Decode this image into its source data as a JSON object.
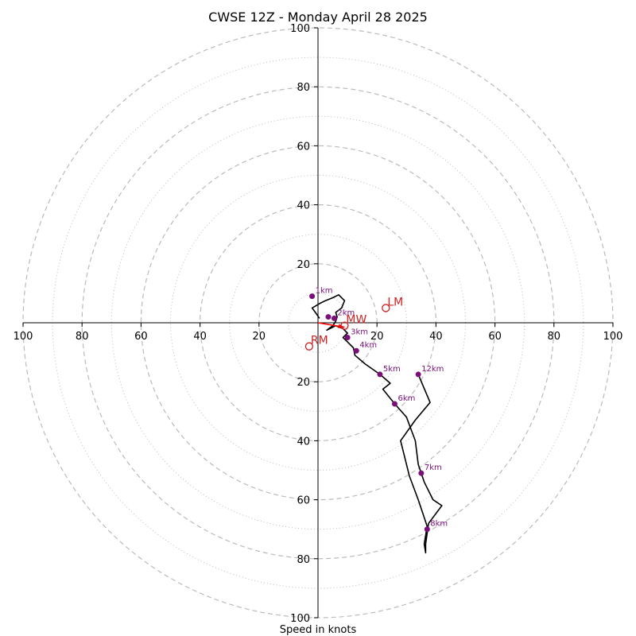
{
  "chart_data": {
    "type": "hodograph",
    "title": "CWSE 12Z - Monday April 28 2025",
    "xlabel": "Speed in knots",
    "xlim": [
      -100,
      100
    ],
    "ylim": [
      -100,
      100
    ],
    "rings_major": [
      20,
      40,
      60,
      80,
      100
    ],
    "rings_minor": [
      10,
      30,
      50,
      70,
      90
    ],
    "x_ticks": [
      "100",
      "80",
      "60",
      "40",
      "20",
      "0",
      "20",
      "40",
      "60",
      "80",
      "100"
    ],
    "y_ticks": [
      "100",
      "80",
      "60",
      "40",
      "20",
      "0",
      "20",
      "40",
      "60",
      "80",
      "100"
    ],
    "grid": true,
    "colors": {
      "trace": "#000000",
      "height_marker": "#7a0f7a",
      "motion_marker": "#cc2222",
      "shear_vector": "#ff0000",
      "grid": "#bbbbbb"
    },
    "trace": [
      [
        0.5,
        1.5
      ],
      [
        -0.5,
        3.0
      ],
      [
        -2.0,
        5.0
      ],
      [
        0.5,
        6.5
      ],
      [
        2.5,
        7.5
      ],
      [
        5.0,
        8.5
      ],
      [
        7.0,
        9.5
      ],
      [
        9.0,
        7.5
      ],
      [
        8.0,
        5.0
      ],
      [
        6.0,
        3.5
      ],
      [
        6.5,
        2.0
      ],
      [
        6.0,
        0.5
      ],
      [
        5.0,
        -1.0
      ],
      [
        3.0,
        -2.5
      ],
      [
        6.0,
        -1.0
      ],
      [
        8.5,
        -2.0
      ],
      [
        10.0,
        -3.5
      ],
      [
        8.5,
        -5.0
      ],
      [
        10.0,
        -6.5
      ],
      [
        12.0,
        -8.5
      ],
      [
        12.5,
        -11.0
      ],
      [
        16.0,
        -14.0
      ],
      [
        21.0,
        -17.5
      ],
      [
        24.5,
        -20.5
      ],
      [
        22.0,
        -22.5
      ],
      [
        26.0,
        -27.5
      ],
      [
        30.0,
        -32.0
      ],
      [
        33.0,
        -40.0
      ],
      [
        34.0,
        -48.0
      ],
      [
        36.0,
        -54.0
      ],
      [
        39.0,
        -60.0
      ],
      [
        42.0,
        -62.0
      ],
      [
        37.5,
        -68.0
      ],
      [
        36.5,
        -75.0
      ],
      [
        36.5,
        -78.0
      ],
      [
        36.0,
        -75.0
      ],
      [
        37.0,
        -69.0
      ],
      [
        34.0,
        -60.0
      ],
      [
        31.0,
        -52.0
      ],
      [
        28.0,
        -40.0
      ],
      [
        33.0,
        -33.0
      ],
      [
        38.0,
        -27.0
      ],
      [
        34.0,
        -17.5
      ]
    ],
    "height_points": [
      {
        "label": "1km",
        "x": -2.0,
        "y": 9.0
      },
      {
        "label": "2km",
        "x": 5.5,
        "y": 1.5
      },
      {
        "label": "3km",
        "x": 10.0,
        "y": -5.0
      },
      {
        "label": "4km",
        "x": 13.0,
        "y": -9.5
      },
      {
        "label": "5km",
        "x": 21.0,
        "y": -17.5
      },
      {
        "label": "6km",
        "x": 26.0,
        "y": -27.5
      },
      {
        "label": "7km",
        "x": 35.0,
        "y": -51.0
      },
      {
        "label": "8km",
        "x": 37.0,
        "y": -70.0
      },
      {
        "label": "12km",
        "x": 34.0,
        "y": -17.5
      }
    ],
    "extra_points": [
      {
        "x": 3.5,
        "y": 2.0
      }
    ],
    "motions": [
      {
        "label": "LM",
        "x": 23.0,
        "y": 5.0
      },
      {
        "label": "MW",
        "x": 9.0,
        "y": -1.0
      },
      {
        "label": "RM",
        "x": -3.0,
        "y": -8.0
      }
    ],
    "shear_vector": {
      "from": [
        0,
        0
      ],
      "to": [
        9.0,
        -1.5
      ]
    }
  }
}
